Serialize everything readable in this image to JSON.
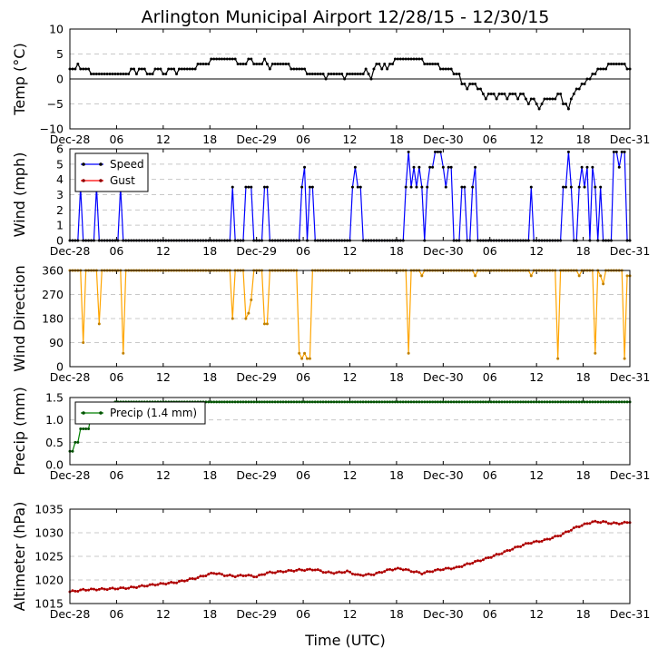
{
  "colors": {
    "temp": "#000000",
    "speed": "#0000ff",
    "gust": "#ff0000",
    "direction": "#ffa500",
    "precip": "#008000",
    "altimeter": "#8b0000"
  },
  "chart_data": {
    "title": "Arlington Municipal Airport 12/28/15 - 12/30/15",
    "xlabel": "Time (UTC)",
    "x_ticks": [
      "Dec-28",
      "06",
      "12",
      "18",
      "Dec-29",
      "06",
      "12",
      "18",
      "Dec-30",
      "06",
      "12",
      "18",
      "Dec-31"
    ],
    "time_step_minutes": 20,
    "panels": [
      {
        "type": "line",
        "ylabel": "Temp ($^\\circ$C)",
        "ylabel_text": "Temp (°C)",
        "ylim": [
          -10,
          10
        ],
        "yticks": [
          "10",
          "5",
          "0",
          "−5",
          "−10"
        ],
        "ytick_values": [
          10,
          5,
          0,
          -5,
          -10
        ],
        "zero_line": true,
        "series": [
          {
            "name": "Temp",
            "color_key": "temp",
            "keypoints": [
              [
                0,
                2
              ],
              [
                2,
                2
              ],
              [
                3,
                3
              ],
              [
                4,
                2
              ],
              [
                7,
                2
              ],
              [
                8,
                1
              ],
              [
                22,
                1
              ],
              [
                23,
                2
              ],
              [
                25,
                1
              ],
              [
                27,
                2
              ],
              [
                30,
                1
              ],
              [
                33,
                2
              ],
              [
                35,
                1
              ],
              [
                38,
                2
              ],
              [
                40,
                1
              ],
              [
                42,
                2
              ],
              [
                47,
                2
              ],
              [
                48,
                3
              ],
              [
                52,
                3
              ],
              [
                53,
                4
              ],
              [
                62,
                4
              ],
              [
                63,
                3
              ],
              [
                66,
                3
              ],
              [
                67,
                4
              ],
              [
                69,
                3
              ],
              [
                72,
                3
              ],
              [
                73,
                4
              ],
              [
                74,
                3
              ],
              [
                75,
                2
              ],
              [
                76,
                3
              ],
              [
                82,
                3
              ],
              [
                83,
                2
              ],
              [
                88,
                2
              ],
              [
                89,
                1
              ],
              [
                95,
                1
              ],
              [
                96,
                0
              ],
              [
                97,
                1
              ],
              [
                102,
                1
              ],
              [
                103,
                0
              ],
              [
                104,
                1
              ],
              [
                110,
                1
              ],
              [
                111,
                2
              ],
              [
                112,
                1
              ],
              [
                113,
                0
              ],
              [
                114,
                2
              ],
              [
                116,
                3
              ],
              [
                117,
                2
              ],
              [
                118,
                3
              ],
              [
                119,
                2
              ],
              [
                121,
                3
              ],
              [
                123,
                4
              ],
              [
                132,
                4
              ],
              [
                133,
                3
              ],
              [
                138,
                3
              ],
              [
                139,
                2
              ],
              [
                143,
                2
              ],
              [
                144,
                1
              ],
              [
                146,
                1
              ],
              [
                147,
                -1
              ],
              [
                149,
                -2
              ],
              [
                151,
                -1
              ],
              [
                153,
                -2
              ],
              [
                155,
                -3
              ],
              [
                156,
                -4
              ],
              [
                158,
                -3
              ],
              [
                160,
                -4
              ],
              [
                162,
                -3
              ],
              [
                164,
                -4
              ],
              [
                166,
                -3
              ],
              [
                168,
                -4
              ],
              [
                170,
                -3
              ],
              [
                172,
                -5
              ],
              [
                174,
                -4
              ],
              [
                176,
                -6
              ],
              [
                178,
                -4
              ],
              [
                182,
                -4
              ],
              [
                184,
                -3
              ],
              [
                185,
                -5
              ],
              [
                187,
                -6
              ],
              [
                189,
                -3
              ],
              [
                191,
                -2
              ],
              [
                193,
                -1
              ],
              [
                195,
                0
              ],
              [
                197,
                1
              ],
              [
                199,
                2
              ],
              [
                201,
                2
              ],
              [
                202,
                3
              ],
              [
                208,
                3
              ],
              [
                209,
                2
              ],
              [
                210,
                2
              ]
            ]
          }
        ]
      },
      {
        "type": "line",
        "ylabel": "Wind (mph)",
        "ylim": [
          0,
          6
        ],
        "yticks": [
          "6",
          "5",
          "4",
          "3",
          "2",
          "1",
          "0"
        ],
        "ytick_values": [
          6,
          5,
          4,
          3,
          2,
          1,
          0
        ],
        "legend": [
          "Speed",
          "Gust"
        ],
        "series": [
          {
            "name": "Speed",
            "color_key": "speed",
            "events": [
              [
                4,
                3.5
              ],
              [
                10,
                3.5
              ],
              [
                19,
                3.5
              ],
              [
                61,
                3.5
              ],
              [
                66,
                3.5
              ],
              [
                67,
                3.5
              ],
              [
                68,
                3.5
              ],
              [
                73,
                3.5
              ],
              [
                74,
                3.5
              ],
              [
                87,
                3.5
              ],
              [
                88,
                4.8
              ],
              [
                90,
                3.5
              ],
              [
                91,
                3.5
              ],
              [
                106,
                3.5
              ],
              [
                107,
                4.8
              ],
              [
                108,
                3.5
              ],
              [
                109,
                3.5
              ],
              [
                126,
                3.5
              ],
              [
                127,
                5.8
              ],
              [
                128,
                3.5
              ],
              [
                129,
                4.8
              ],
              [
                130,
                3.5
              ],
              [
                131,
                4.8
              ],
              [
                132,
                3.5
              ],
              [
                134,
                3.5
              ],
              [
                135,
                4.8
              ],
              [
                136,
                4.8
              ],
              [
                137,
                5.8
              ],
              [
                138,
                5.8
              ],
              [
                139,
                5.8
              ],
              [
                140,
                4.8
              ],
              [
                141,
                3.5
              ],
              [
                142,
                4.8
              ],
              [
                143,
                4.8
              ],
              [
                147,
                3.5
              ],
              [
                148,
                3.5
              ],
              [
                151,
                3.5
              ],
              [
                152,
                4.8
              ],
              [
                173,
                3.5
              ],
              [
                185,
                3.5
              ],
              [
                186,
                3.5
              ],
              [
                187,
                5.8
              ],
              [
                188,
                3.5
              ],
              [
                191,
                3.5
              ],
              [
                192,
                4.8
              ],
              [
                193,
                3.5
              ],
              [
                194,
                4.8
              ],
              [
                196,
                4.8
              ],
              [
                197,
                3.5
              ],
              [
                199,
                3.5
              ],
              [
                204,
                5.8
              ],
              [
                205,
                5.8
              ],
              [
                206,
                4.8
              ],
              [
                207,
                5.8
              ],
              [
                208,
                5.8
              ]
            ],
            "baseline": 0
          }
        ]
      },
      {
        "type": "line",
        "ylabel": "Wind Direction",
        "ylim": [
          0,
          360
        ],
        "yticks": [
          "360",
          "270",
          "180",
          "90",
          "0"
        ],
        "ytick_values": [
          360,
          270,
          180,
          90,
          0
        ],
        "series": [
          {
            "name": "Direction",
            "color_key": "direction",
            "events": [
              [
                5,
                90
              ],
              [
                11,
                160
              ],
              [
                20,
                50
              ],
              [
                61,
                180
              ],
              [
                66,
                180
              ],
              [
                67,
                200
              ],
              [
                68,
                250
              ],
              [
                73,
                160
              ],
              [
                74,
                160
              ],
              [
                86,
                50
              ],
              [
                87,
                30
              ],
              [
                88,
                50
              ],
              [
                89,
                30
              ],
              [
                90,
                30
              ],
              [
                127,
                50
              ],
              [
                132,
                340
              ],
              [
                152,
                340
              ],
              [
                173,
                340
              ],
              [
                183,
                30
              ],
              [
                191,
                340
              ],
              [
                197,
                50
              ],
              [
                199,
                340
              ],
              [
                200,
                310
              ],
              [
                208,
                30
              ],
              [
                209,
                340
              ],
              [
                210,
                340
              ]
            ],
            "baseline": 360
          }
        ]
      },
      {
        "type": "line",
        "ylabel": "Precip (mm)",
        "ylim": [
          0,
          1.5
        ],
        "yticks": [
          "1.5",
          "1.0",
          "0.5",
          "0.0"
        ],
        "ytick_values": [
          1.5,
          1.0,
          0.5,
          0.0
        ],
        "legend": [
          "Precip (1.4 mm)"
        ],
        "series": [
          {
            "name": "Precip (1.4 mm)",
            "color_key": "precip",
            "steps": [
              [
                0,
                0.3
              ],
              [
                2,
                0.5
              ],
              [
                4,
                0.8
              ],
              [
                8,
                1.1
              ],
              [
                17,
                1.4
              ]
            ]
          }
        ]
      },
      {
        "type": "line",
        "ylabel": "Altimeter (hPa)",
        "ylim": [
          1015,
          1035
        ],
        "yticks": [
          "1035",
          "1030",
          "1025",
          "1020",
          "1015"
        ],
        "ytick_values": [
          1035,
          1030,
          1025,
          1020,
          1015
        ],
        "series": [
          {
            "name": "Altimeter",
            "color_key": "altimeter",
            "keypoints": [
              [
                0,
                1017.5
              ],
              [
                5,
                1017.9
              ],
              [
                14,
                1018.1
              ],
              [
                22,
                1018.3
              ],
              [
                30,
                1018.9
              ],
              [
                40,
                1019.5
              ],
              [
                48,
                1020.5
              ],
              [
                54,
                1021.5
              ],
              [
                58,
                1021
              ],
              [
                62,
                1020.8
              ],
              [
                66,
                1021
              ],
              [
                70,
                1020.7
              ],
              [
                74,
                1021.5
              ],
              [
                80,
                1021.8
              ],
              [
                86,
                1022.1
              ],
              [
                92,
                1022.2
              ],
              [
                96,
                1021.6
              ],
              [
                100,
                1021.5
              ],
              [
                104,
                1021.8
              ],
              [
                108,
                1021
              ],
              [
                114,
                1021.2
              ],
              [
                120,
                1022.2
              ],
              [
                124,
                1022.4
              ],
              [
                128,
                1021.9
              ],
              [
                132,
                1021.4
              ],
              [
                136,
                1021.9
              ],
              [
                140,
                1022.3
              ],
              [
                145,
                1022.6
              ],
              [
                150,
                1023.5
              ],
              [
                156,
                1024.5
              ],
              [
                162,
                1025.7
              ],
              [
                167,
                1026.8
              ],
              [
                172,
                1027.8
              ],
              [
                178,
                1028.4
              ],
              [
                184,
                1029.5
              ],
              [
                190,
                1031.2
              ],
              [
                196,
                1032.3
              ],
              [
                200,
                1032.3
              ],
              [
                203,
                1032
              ],
              [
                207,
                1032
              ],
              [
                210,
                1032.3
              ]
            ]
          }
        ]
      }
    ]
  }
}
